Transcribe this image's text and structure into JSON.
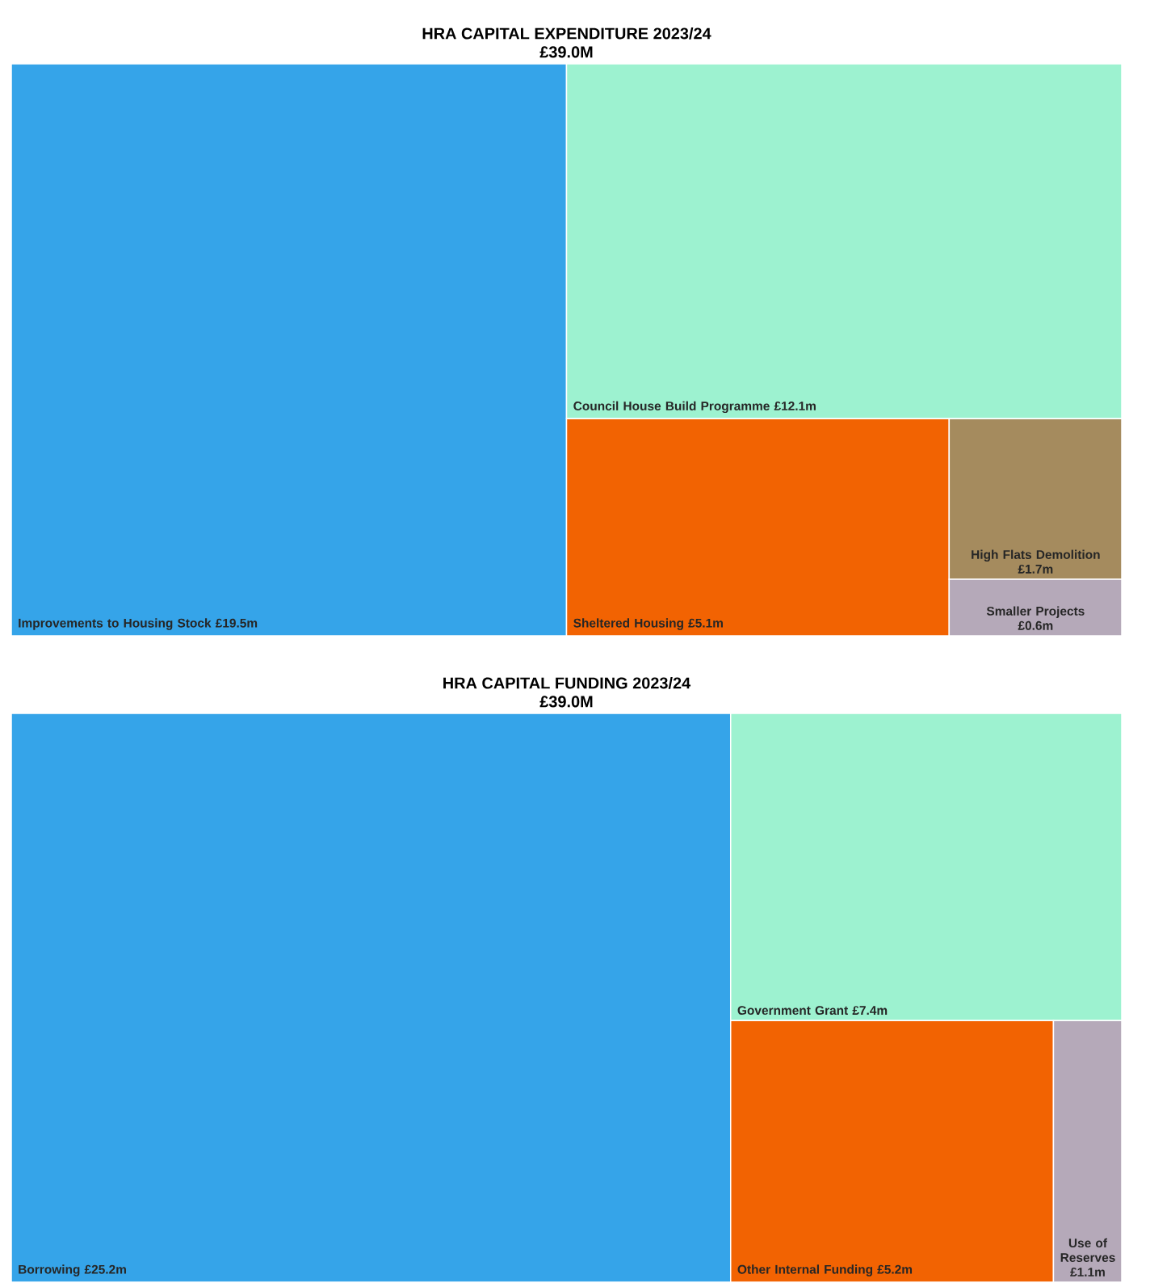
{
  "chart_data": [
    {
      "type": "other",
      "title": "HRA CAPITAL EXPENDITURE 2023/24",
      "subtitle": "£39.0M",
      "categories": [
        "Improvements to Housing Stock",
        "Council House Build Programme",
        "Sheltered Housing",
        "High Flats Demolition",
        "Smaller Projects"
      ],
      "values": [
        19.5,
        12.1,
        5.1,
        1.7,
        0.6
      ],
      "value_labels": [
        "£19.5m",
        "£12.1m",
        "£5.1m",
        "£1.7m",
        "£0.6m"
      ],
      "colors": [
        "#35a4e9",
        "#9df2d0",
        "#f26302",
        "#a58b5e",
        "#b5a9b9"
      ]
    },
    {
      "type": "other",
      "title": "HRA CAPITAL FUNDING 2023/24",
      "subtitle": "£39.0M",
      "categories": [
        "Borrowing",
        "Government Grant",
        "Other Internal Funding",
        "Use of Reserves"
      ],
      "values": [
        25.2,
        7.4,
        5.2,
        1.1
      ],
      "value_labels": [
        "£25.2m",
        "£7.4m",
        "£5.2m",
        "£1.1m"
      ],
      "colors": [
        "#35a4e9",
        "#9df2d0",
        "#f26302",
        "#b5a9b9"
      ]
    }
  ]
}
